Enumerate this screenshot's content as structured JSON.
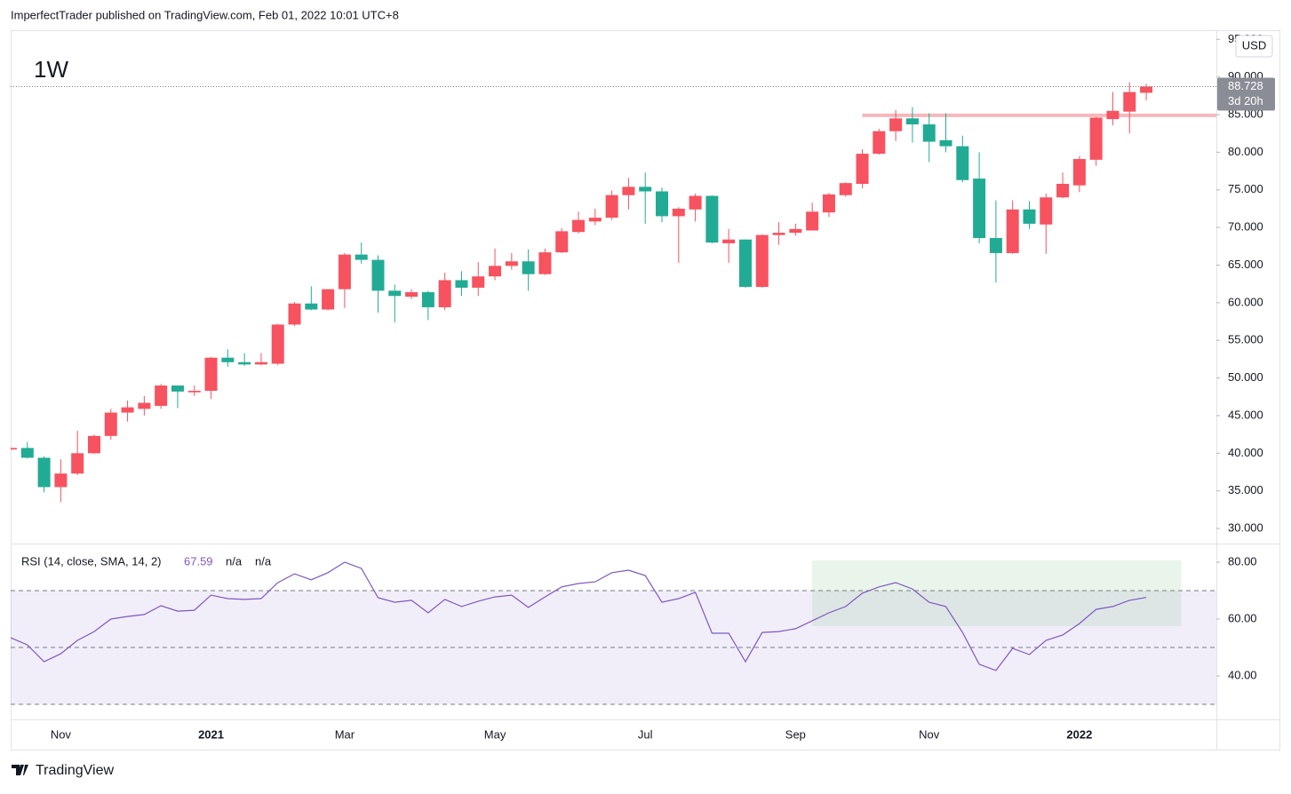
{
  "header": "ImperfectTrader published on TradingView.com, Feb 01, 2022 10:01 UTC+8",
  "footer": "TradingView",
  "chart_data": [
    {
      "type": "candlestick",
      "title": "1W",
      "currency": "USD",
      "categories": [
        null,
        null,
        null,
        "Nov",
        null,
        null,
        null,
        null,
        null,
        null,
        null,
        null,
        "2021",
        null,
        null,
        null,
        null,
        null,
        null,
        null,
        "Mar",
        null,
        null,
        null,
        null,
        null,
        null,
        null,
        null,
        "May",
        null,
        null,
        null,
        null,
        null,
        null,
        null,
        null,
        "Jul",
        null,
        null,
        null,
        null,
        null,
        null,
        null,
        null,
        "Sep",
        null,
        null,
        null,
        null,
        null,
        null,
        null,
        "Nov",
        null,
        null,
        null,
        null,
        null,
        null,
        null,
        null,
        "2022",
        null,
        null,
        null,
        null
      ],
      "open": [
        40500,
        40700,
        39400,
        35500,
        37300,
        40000,
        42300,
        45400,
        45900,
        46300,
        49000,
        48100,
        48300,
        52700,
        52100,
        51800,
        51900,
        57100,
        59900,
        59100,
        61800,
        66400,
        65700,
        61600,
        60800,
        61400,
        59400,
        63000,
        62000,
        63500,
        64900,
        65500,
        63800,
        66700,
        69400,
        70800,
        71300,
        74300,
        75400,
        74800,
        71500,
        72400,
        74200,
        67900,
        68400,
        62100,
        69000,
        69300,
        69600,
        72000,
        74300,
        75800,
        79800,
        82800,
        84500,
        83700,
        81600,
        80800,
        76500,
        68600,
        66600,
        72400,
        70400,
        74000,
        75600,
        79000,
        84400,
        85400,
        87900
      ],
      "high": [
        40800,
        41500,
        39600,
        39200,
        43000,
        42500,
        45900,
        47000,
        47600,
        49200,
        49000,
        49000,
        52800,
        53800,
        53300,
        53300,
        57200,
        60100,
        62200,
        61800,
        66600,
        68000,
        66300,
        62400,
        61800,
        61600,
        64000,
        64200,
        65400,
        67200,
        66600,
        67100,
        67200,
        69900,
        72100,
        72500,
        74900,
        76600,
        77300,
        75300,
        72700,
        74500,
        74300,
        69800,
        68400,
        69100,
        70700,
        70500,
        73300,
        74600,
        76000,
        80400,
        83100,
        85600,
        86000,
        85200,
        85200,
        82200,
        80000,
        73600,
        73600,
        73500,
        74500,
        77300,
        79500,
        84700,
        88000,
        89300,
        89100
      ],
      "low": [
        40400,
        39300,
        34800,
        33500,
        37100,
        39900,
        41800,
        44200,
        45000,
        45900,
        46000,
        47600,
        47200,
        51500,
        51600,
        51700,
        51700,
        56900,
        59000,
        59000,
        59300,
        65200,
        58700,
        57400,
        60500,
        57700,
        59000,
        60900,
        60900,
        63000,
        64400,
        61600,
        63700,
        66600,
        69200,
        70300,
        71000,
        72400,
        70500,
        70700,
        65300,
        70800,
        67900,
        65300,
        62000,
        62000,
        67700,
        68900,
        69600,
        71400,
        74100,
        75200,
        79700,
        81500,
        81300,
        78700,
        80000,
        76000,
        67900,
        62700,
        66500,
        69800,
        66500,
        73900,
        74700,
        78200,
        83600,
        82500,
        86900
      ],
      "close": [
        40700,
        39400,
        35500,
        37300,
        40000,
        42300,
        45400,
        46100,
        46700,
        49000,
        48200,
        48300,
        52700,
        52100,
        51800,
        52100,
        57100,
        59900,
        59100,
        61800,
        66400,
        65700,
        61600,
        60900,
        61400,
        59400,
        63000,
        62000,
        63500,
        64900,
        65500,
        63800,
        66700,
        69500,
        71000,
        71300,
        74300,
        75400,
        74800,
        71500,
        72500,
        74200,
        68000,
        68400,
        62100,
        69000,
        69300,
        69800,
        72100,
        74400,
        75900,
        79800,
        82800,
        84500,
        83700,
        81400,
        80800,
        76300,
        68600,
        66600,
        72400,
        70500,
        74000,
        75800,
        79100,
        84600,
        85500,
        88000,
        88728
      ],
      "up_color": "#f7525f",
      "down_color": "#22ab94",
      "xlim": [
        0,
        72.2
      ],
      "ylim": [
        28000,
        96100
      ],
      "yticks": [
        {
          "value": 30000,
          "label": "30.000"
        },
        {
          "value": 35000,
          "label": "35.000"
        },
        {
          "value": 40000,
          "label": "40.000"
        },
        {
          "value": 45000,
          "label": "45.000"
        },
        {
          "value": 50000,
          "label": "50.000"
        },
        {
          "value": 55000,
          "label": "55.000"
        },
        {
          "value": 60000,
          "label": "60.000"
        },
        {
          "value": 65000,
          "label": "65.000"
        },
        {
          "value": 70000,
          "label": "70.000"
        },
        {
          "value": 75000,
          "label": "75.000"
        },
        {
          "value": 80000,
          "label": "80.000"
        },
        {
          "value": 85000,
          "label": "85.000"
        },
        {
          "value": 90000,
          "label": "90.000"
        },
        {
          "value": 95000,
          "label": "95.000"
        }
      ],
      "last_price": {
        "value": 88728,
        "label": "88.728"
      },
      "countdown": "3d 20h",
      "hline": {
        "value": 84900,
        "from": 51,
        "color": "#f5b8bd"
      }
    },
    {
      "type": "line",
      "title": "RSI (14, close, SMA, 14, 2)",
      "extra_labels": [
        "n/a",
        "n/a"
      ],
      "color": "#7e57c2",
      "values": [
        53.4,
        50.9,
        45.0,
        47.8,
        52.5,
        55.6,
        60.0,
        60.9,
        61.6,
        64.7,
        62.8,
        63.1,
        68.4,
        67.2,
        66.9,
        67.2,
        72.8,
        75.9,
        73.8,
        76.3,
        80.0,
        77.8,
        67.5,
        65.9,
        66.6,
        62.2,
        66.9,
        64.4,
        66.3,
        67.8,
        68.4,
        64.1,
        67.8,
        71.3,
        72.5,
        73.1,
        76.3,
        77.2,
        75.3,
        65.9,
        67.2,
        69.4,
        55.0,
        55.0,
        45.0,
        55.3,
        55.6,
        56.6,
        59.4,
        62.2,
        64.4,
        69.1,
        71.3,
        72.8,
        70.6,
        65.9,
        64.4,
        55.3,
        44.1,
        41.9,
        49.7,
        47.5,
        52.5,
        54.4,
        58.4,
        63.4,
        64.4,
        66.6,
        67.59
      ],
      "ylim": [
        24.7,
        86.25
      ],
      "yticks": [
        {
          "value": 40,
          "label": "40.00"
        },
        {
          "value": 60,
          "label": "60.00"
        },
        {
          "value": 80,
          "label": "80.00"
        }
      ],
      "bands": {
        "upper": 70,
        "middle": 50,
        "lower": 30
      },
      "highlight": {
        "x": [
          48,
          70.1
        ],
        "y": [
          80.6,
          57.5
        ]
      }
    }
  ]
}
